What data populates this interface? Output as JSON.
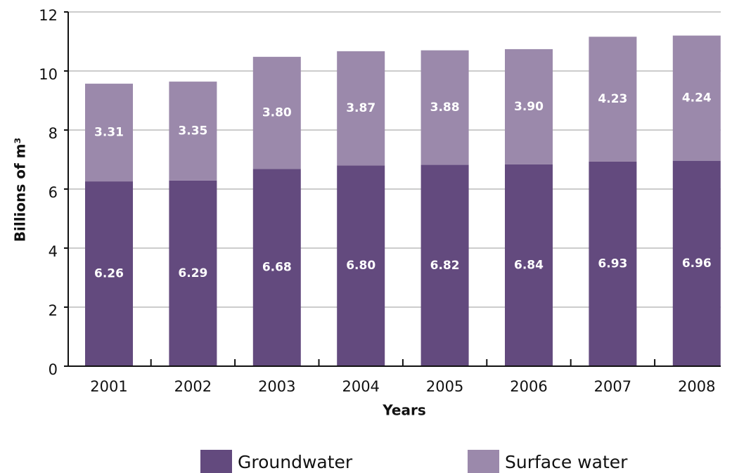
{
  "chart_data": {
    "type": "stacked_bar",
    "x_label": "Years",
    "y_label": "Billions of m³",
    "categories": [
      "2001",
      "2002",
      "2003",
      "2004",
      "2005",
      "2006",
      "2007",
      "2008"
    ],
    "series": [
      {
        "name": "Groundwater",
        "color": "#634a7e",
        "values": [
          6.26,
          6.29,
          6.68,
          6.8,
          6.82,
          6.84,
          6.93,
          6.96
        ],
        "value_labels": [
          "6.26",
          "6.29",
          "6.68",
          "6.80",
          "6.82",
          "6.84",
          "6.93",
          "6.96"
        ]
      },
      {
        "name": "Surface water",
        "color": "#9b89ab",
        "values": [
          3.31,
          3.35,
          3.8,
          3.87,
          3.88,
          3.9,
          4.23,
          4.24
        ],
        "value_labels": [
          "3.31",
          "3.35",
          "3.80",
          "3.87",
          "3.88",
          "3.90",
          "4.23",
          "4.24"
        ]
      }
    ],
    "ylim": [
      0,
      12
    ],
    "yticks": [
      0,
      2,
      4,
      6,
      8,
      10,
      12
    ],
    "grid": true
  }
}
